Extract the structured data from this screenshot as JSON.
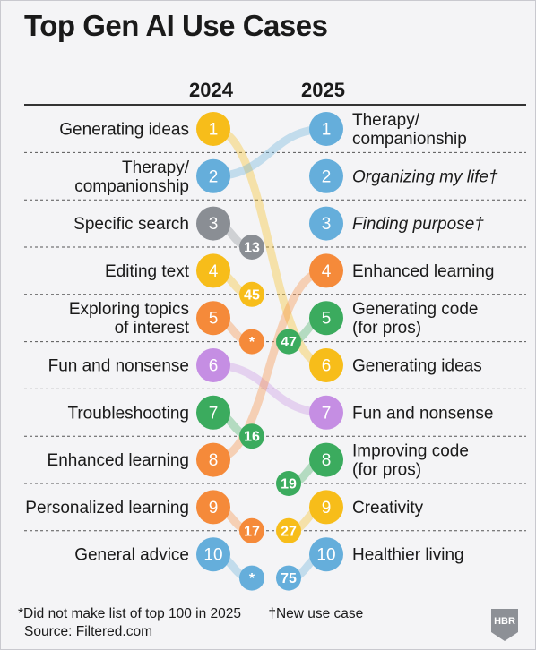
{
  "title": "Top Gen AI Use Cases",
  "years": {
    "left": "2024",
    "right": "2025"
  },
  "footnote_star": "*Did not make list of top 100 in 2025",
  "footnote_dagger": "†New use case",
  "source": "Source: Filtered.com",
  "logo_text": "HBR",
  "colors": {
    "yellow": "#f7bd1a",
    "blue": "#65aedb",
    "gray": "#8a8e94",
    "orange": "#f58a3a",
    "green": "#3bab5e",
    "purple": "#c58ee3"
  },
  "chart_data": {
    "type": "table",
    "rank_2024": [
      {
        "rank": 1,
        "label": "Generating ideas",
        "color": "yellow",
        "rank_2025": "6"
      },
      {
        "rank": 2,
        "label": "Therapy/\ncompanionship",
        "color": "blue",
        "rank_2025": "1"
      },
      {
        "rank": 3,
        "label": "Specific search",
        "color": "gray",
        "rank_2025": "13"
      },
      {
        "rank": 4,
        "label": "Editing text",
        "color": "yellow",
        "rank_2025": "45"
      },
      {
        "rank": 5,
        "label": "Exploring topics\nof interest",
        "color": "orange",
        "rank_2025": "*"
      },
      {
        "rank": 6,
        "label": "Fun and nonsense",
        "color": "purple",
        "rank_2025": "7"
      },
      {
        "rank": 7,
        "label": "Troubleshooting",
        "color": "green",
        "rank_2025": "16"
      },
      {
        "rank": 8,
        "label": "Enhanced learning",
        "color": "orange",
        "rank_2025": "4"
      },
      {
        "rank": 9,
        "label": "Personalized learning",
        "color": "orange",
        "rank_2025": "17"
      },
      {
        "rank": 10,
        "label": "General advice",
        "color": "blue",
        "rank_2025": "*"
      }
    ],
    "rank_2025": [
      {
        "rank": 1,
        "label": "Therapy/\ncompanionship",
        "color": "blue",
        "rank_2024": "2",
        "italic": false
      },
      {
        "rank": 2,
        "label": "Organizing my life†",
        "color": "blue",
        "rank_2024": "",
        "italic": true
      },
      {
        "rank": 3,
        "label": "Finding purpose†",
        "color": "blue",
        "rank_2024": "",
        "italic": true
      },
      {
        "rank": 4,
        "label": "Enhanced learning",
        "color": "orange",
        "rank_2024": "8",
        "italic": false
      },
      {
        "rank": 5,
        "label": "Generating code\n(for pros)",
        "color": "green",
        "rank_2024": "47",
        "italic": false
      },
      {
        "rank": 6,
        "label": "Generating ideas",
        "color": "yellow",
        "rank_2024": "1",
        "italic": false
      },
      {
        "rank": 7,
        "label": "Fun and nonsense",
        "color": "purple",
        "rank_2024": "6",
        "italic": false
      },
      {
        "rank": 8,
        "label": "Improving code\n(for pros)",
        "color": "green",
        "rank_2024": "19",
        "italic": false
      },
      {
        "rank": 9,
        "label": "Creativity",
        "color": "yellow",
        "rank_2024": "27",
        "italic": false
      },
      {
        "rank": 10,
        "label": "Healthier living",
        "color": "blue",
        "rank_2024": "75",
        "italic": false
      }
    ]
  }
}
